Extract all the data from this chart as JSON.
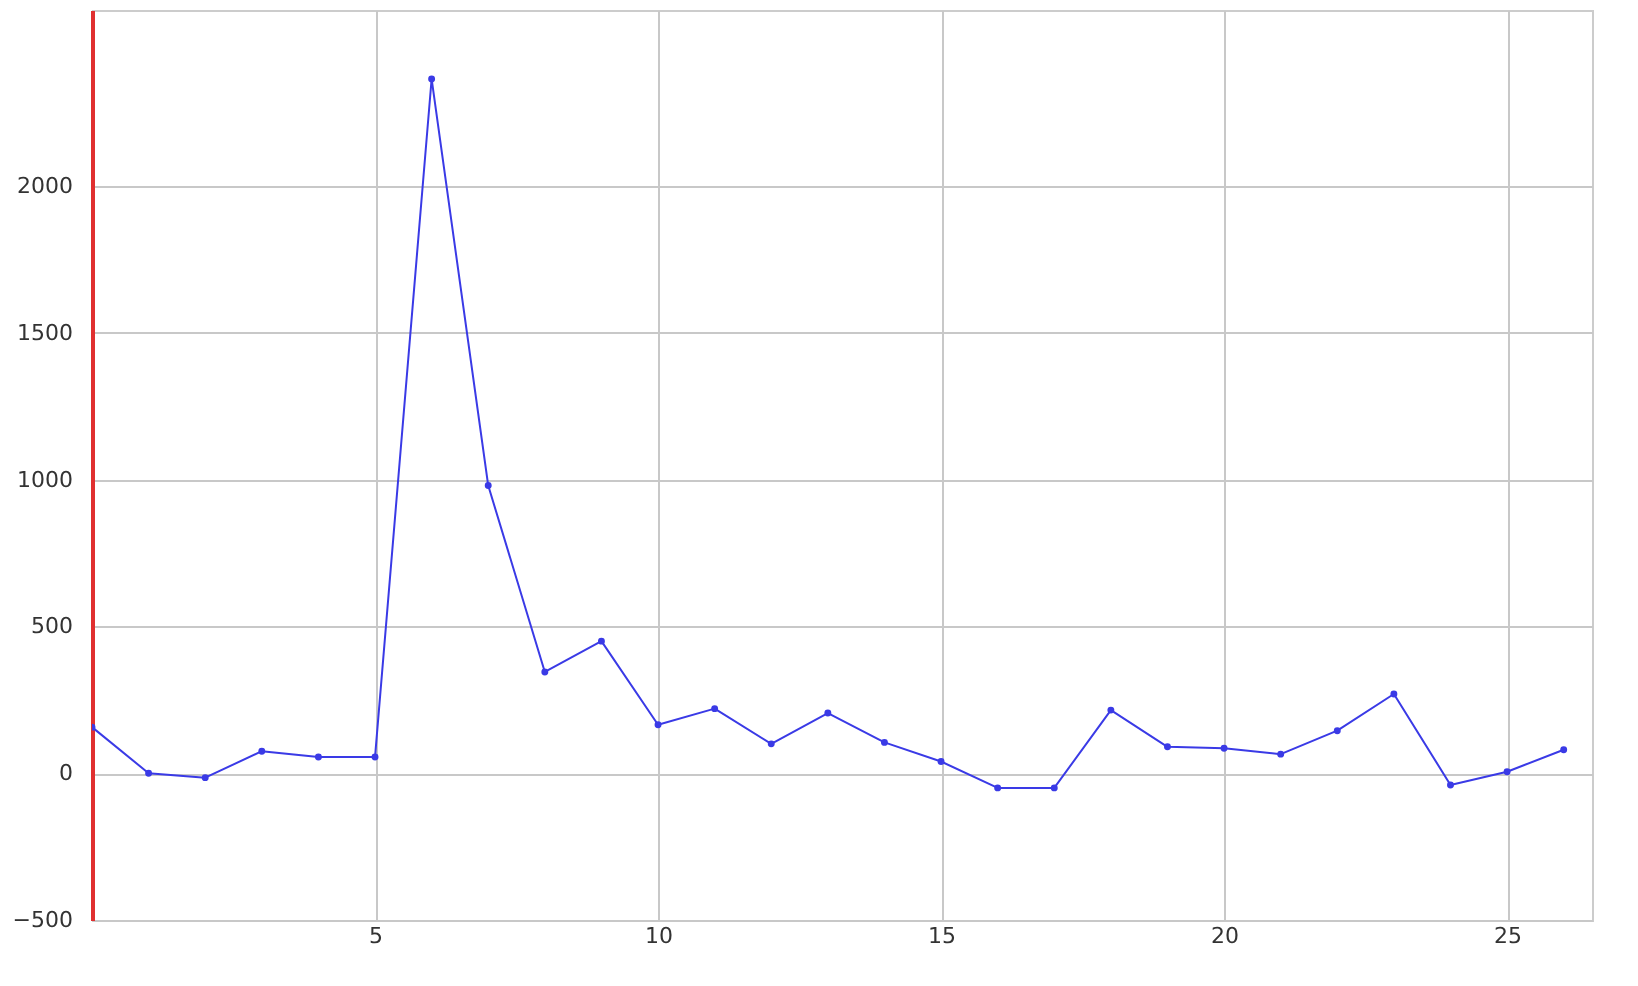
{
  "chart_data": {
    "type": "line",
    "x": [
      0,
      1,
      2,
      3,
      4,
      5,
      6,
      7,
      8,
      9,
      10,
      11,
      12,
      13,
      14,
      15,
      16,
      17,
      18,
      19,
      20,
      21,
      22,
      23,
      24,
      25,
      26
    ],
    "series": [
      {
        "color": "#3a3ae6",
        "values": [
          157,
          0,
          -15,
          75,
          55,
          55,
          2365,
          980,
          345,
          450,
          165,
          220,
          100,
          205,
          105,
          40,
          -50,
          -50,
          215,
          90,
          85,
          65,
          145,
          270,
          -40,
          5,
          80
        ]
      }
    ],
    "xlim": [
      0,
      26.5
    ],
    "ylim": [
      -500,
      2600
    ],
    "xticks": [
      5,
      10,
      15,
      20,
      25
    ],
    "yticks": [
      -500,
      0,
      500,
      1000,
      1500,
      2000
    ],
    "grid": true,
    "marker": "circle",
    "line_style": "solid"
  }
}
